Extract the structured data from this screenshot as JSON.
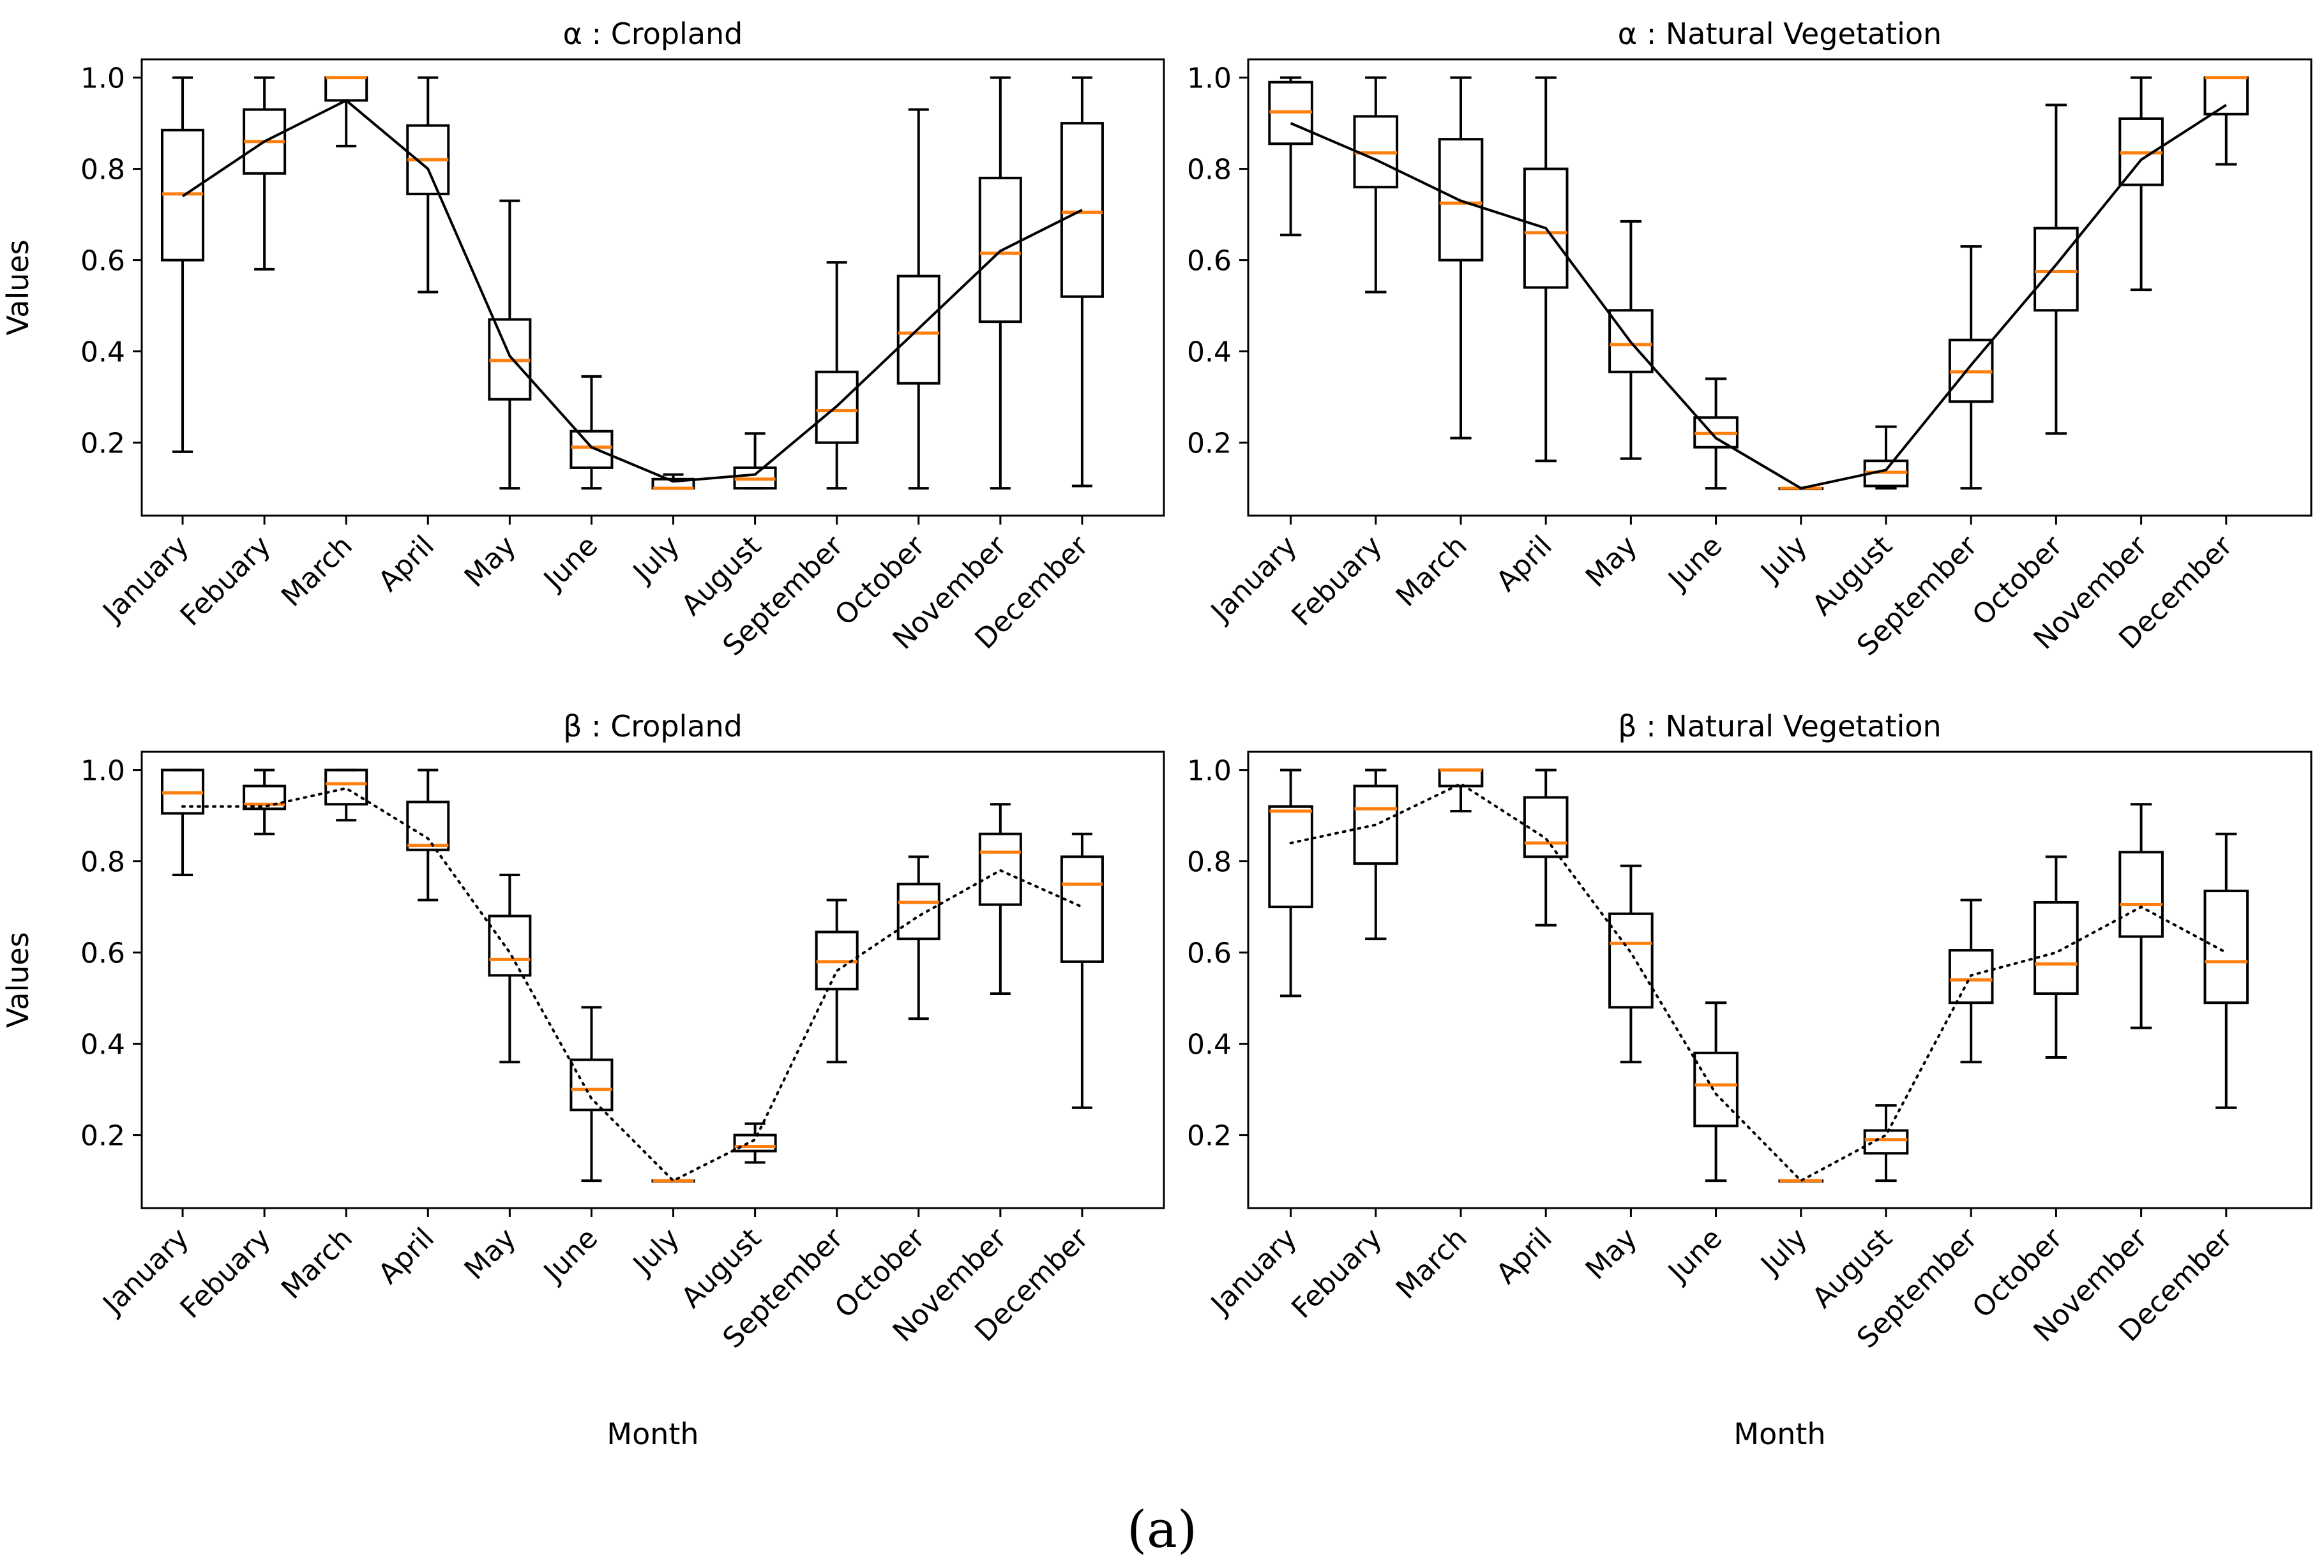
{
  "figure_caption": "(a)",
  "colors": {
    "box": "#000000",
    "median": "#ff7f0e",
    "trend": "#000000",
    "background": "#ffffff"
  },
  "chart_data": [
    {
      "type": "boxplot",
      "title": "α : Cropland",
      "xlabel": "",
      "ylabel": "Values",
      "ylim": [
        0.04,
        1.04
      ],
      "yticks": [
        "0.2",
        "0.4",
        "0.6",
        "0.8",
        "1.0"
      ],
      "trend_style": "solid",
      "categories": [
        "January",
        "Febuary",
        "March",
        "April",
        "May",
        "June",
        "July",
        "August",
        "September",
        "October",
        "November",
        "December"
      ],
      "boxes": [
        {
          "min": 0.18,
          "q1": 0.6,
          "median": 0.745,
          "q3": 0.885,
          "max": 1.0
        },
        {
          "min": 0.58,
          "q1": 0.79,
          "median": 0.86,
          "q3": 0.93,
          "max": 1.0
        },
        {
          "min": 0.85,
          "q1": 0.95,
          "median": 1.0,
          "q3": 1.0,
          "max": 1.0
        },
        {
          "min": 0.53,
          "q1": 0.745,
          "median": 0.82,
          "q3": 0.895,
          "max": 1.0
        },
        {
          "min": 0.1,
          "q1": 0.295,
          "median": 0.38,
          "q3": 0.47,
          "max": 0.73
        },
        {
          "min": 0.1,
          "q1": 0.145,
          "median": 0.19,
          "q3": 0.225,
          "max": 0.345
        },
        {
          "min": 0.1,
          "q1": 0.1,
          "median": 0.1,
          "q3": 0.12,
          "max": 0.13
        },
        {
          "min": 0.1,
          "q1": 0.1,
          "median": 0.12,
          "q3": 0.145,
          "max": 0.22
        },
        {
          "min": 0.1,
          "q1": 0.2,
          "median": 0.27,
          "q3": 0.355,
          "max": 0.595
        },
        {
          "min": 0.1,
          "q1": 0.33,
          "median": 0.44,
          "q3": 0.565,
          "max": 0.93
        },
        {
          "min": 0.1,
          "q1": 0.465,
          "median": 0.615,
          "q3": 0.78,
          "max": 1.0
        },
        {
          "min": 0.105,
          "q1": 0.52,
          "median": 0.705,
          "q3": 0.9,
          "max": 1.0
        }
      ],
      "trend": [
        0.74,
        0.86,
        0.95,
        0.8,
        0.39,
        0.19,
        0.115,
        0.13,
        0.28,
        0.45,
        0.62,
        0.71
      ]
    },
    {
      "type": "boxplot",
      "title": "α : Natural Vegetation",
      "xlabel": "",
      "ylabel": "",
      "ylim": [
        0.04,
        1.04
      ],
      "yticks": [
        "0.2",
        "0.4",
        "0.6",
        "0.8",
        "1.0"
      ],
      "trend_style": "solid",
      "categories": [
        "January",
        "Febuary",
        "March",
        "April",
        "May",
        "June",
        "July",
        "August",
        "September",
        "October",
        "November",
        "December"
      ],
      "boxes": [
        {
          "min": 0.655,
          "q1": 0.855,
          "median": 0.925,
          "q3": 0.99,
          "max": 1.0
        },
        {
          "min": 0.53,
          "q1": 0.76,
          "median": 0.835,
          "q3": 0.915,
          "max": 1.0
        },
        {
          "min": 0.21,
          "q1": 0.6,
          "median": 0.725,
          "q3": 0.865,
          "max": 1.0
        },
        {
          "min": 0.16,
          "q1": 0.54,
          "median": 0.66,
          "q3": 0.8,
          "max": 1.0
        },
        {
          "min": 0.165,
          "q1": 0.355,
          "median": 0.415,
          "q3": 0.49,
          "max": 0.685
        },
        {
          "min": 0.1,
          "q1": 0.19,
          "median": 0.22,
          "q3": 0.255,
          "max": 0.34
        },
        {
          "min": 0.1,
          "q1": 0.1,
          "median": 0.1,
          "q3": 0.1,
          "max": 0.1
        },
        {
          "min": 0.1,
          "q1": 0.105,
          "median": 0.135,
          "q3": 0.16,
          "max": 0.235
        },
        {
          "min": 0.1,
          "q1": 0.29,
          "median": 0.355,
          "q3": 0.425,
          "max": 0.63
        },
        {
          "min": 0.22,
          "q1": 0.49,
          "median": 0.575,
          "q3": 0.67,
          "max": 0.94
        },
        {
          "min": 0.535,
          "q1": 0.765,
          "median": 0.835,
          "q3": 0.91,
          "max": 1.0
        },
        {
          "min": 0.81,
          "q1": 0.92,
          "median": 1.0,
          "q3": 1.0,
          "max": 1.0
        }
      ],
      "trend": [
        0.9,
        0.82,
        0.73,
        0.67,
        0.42,
        0.21,
        0.1,
        0.14,
        0.37,
        0.59,
        0.82,
        0.94
      ]
    },
    {
      "type": "boxplot",
      "title": "β : Cropland",
      "xlabel": "Month",
      "ylabel": "Values",
      "ylim": [
        0.04,
        1.04
      ],
      "yticks": [
        "0.2",
        "0.4",
        "0.6",
        "0.8",
        "1.0"
      ],
      "trend_style": "dotted",
      "categories": [
        "January",
        "Febuary",
        "March",
        "April",
        "May",
        "June",
        "July",
        "August",
        "September",
        "October",
        "November",
        "December"
      ],
      "boxes": [
        {
          "min": 0.77,
          "q1": 0.905,
          "median": 0.95,
          "q3": 1.0,
          "max": 1.0
        },
        {
          "min": 0.86,
          "q1": 0.915,
          "median": 0.925,
          "q3": 0.965,
          "max": 1.0
        },
        {
          "min": 0.89,
          "q1": 0.925,
          "median": 0.97,
          "q3": 1.0,
          "max": 1.0
        },
        {
          "min": 0.715,
          "q1": 0.825,
          "median": 0.835,
          "q3": 0.93,
          "max": 1.0
        },
        {
          "min": 0.36,
          "q1": 0.55,
          "median": 0.585,
          "q3": 0.68,
          "max": 0.77
        },
        {
          "min": 0.1,
          "q1": 0.255,
          "median": 0.3,
          "q3": 0.365,
          "max": 0.48
        },
        {
          "min": 0.1,
          "q1": 0.1,
          "median": 0.1,
          "q3": 0.1,
          "max": 0.1
        },
        {
          "min": 0.14,
          "q1": 0.165,
          "median": 0.175,
          "q3": 0.2,
          "max": 0.225
        },
        {
          "min": 0.36,
          "q1": 0.52,
          "median": 0.58,
          "q3": 0.645,
          "max": 0.715
        },
        {
          "min": 0.455,
          "q1": 0.63,
          "median": 0.71,
          "q3": 0.75,
          "max": 0.81
        },
        {
          "min": 0.51,
          "q1": 0.705,
          "median": 0.82,
          "q3": 0.86,
          "max": 0.925
        },
        {
          "min": 0.26,
          "q1": 0.58,
          "median": 0.75,
          "q3": 0.81,
          "max": 0.86
        }
      ],
      "trend": [
        0.92,
        0.92,
        0.96,
        0.85,
        0.6,
        0.28,
        0.1,
        0.19,
        0.56,
        0.68,
        0.78,
        0.7
      ]
    },
    {
      "type": "boxplot",
      "title": "β : Natural Vegetation",
      "xlabel": "Month",
      "ylabel": "",
      "ylim": [
        0.04,
        1.04
      ],
      "yticks": [
        "0.2",
        "0.4",
        "0.6",
        "0.8",
        "1.0"
      ],
      "trend_style": "dotted",
      "categories": [
        "January",
        "Febuary",
        "March",
        "April",
        "May",
        "June",
        "July",
        "August",
        "September",
        "October",
        "November",
        "December"
      ],
      "boxes": [
        {
          "min": 0.505,
          "q1": 0.7,
          "median": 0.91,
          "q3": 0.92,
          "max": 1.0
        },
        {
          "min": 0.63,
          "q1": 0.795,
          "median": 0.915,
          "q3": 0.965,
          "max": 1.0
        },
        {
          "min": 0.91,
          "q1": 0.965,
          "median": 1.0,
          "q3": 1.0,
          "max": 1.0
        },
        {
          "min": 0.66,
          "q1": 0.81,
          "median": 0.84,
          "q3": 0.94,
          "max": 1.0
        },
        {
          "min": 0.36,
          "q1": 0.48,
          "median": 0.62,
          "q3": 0.685,
          "max": 0.79
        },
        {
          "min": 0.1,
          "q1": 0.22,
          "median": 0.31,
          "q3": 0.38,
          "max": 0.49
        },
        {
          "min": 0.1,
          "q1": 0.1,
          "median": 0.1,
          "q3": 0.1,
          "max": 0.1
        },
        {
          "min": 0.1,
          "q1": 0.16,
          "median": 0.19,
          "q3": 0.21,
          "max": 0.265
        },
        {
          "min": 0.36,
          "q1": 0.49,
          "median": 0.54,
          "q3": 0.605,
          "max": 0.715
        },
        {
          "min": 0.37,
          "q1": 0.51,
          "median": 0.575,
          "q3": 0.71,
          "max": 0.81
        },
        {
          "min": 0.435,
          "q1": 0.635,
          "median": 0.705,
          "q3": 0.82,
          "max": 0.925
        },
        {
          "min": 0.26,
          "q1": 0.49,
          "median": 0.58,
          "q3": 0.735,
          "max": 0.86
        }
      ],
      "trend": [
        0.84,
        0.88,
        0.97,
        0.85,
        0.6,
        0.29,
        0.1,
        0.2,
        0.55,
        0.6,
        0.7,
        0.6
      ]
    }
  ]
}
